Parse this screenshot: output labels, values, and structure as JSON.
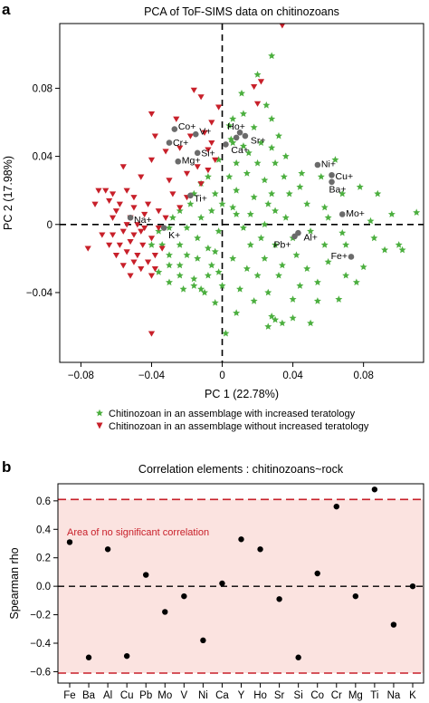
{
  "chart_data": [
    {
      "panel": "a",
      "type": "scatter",
      "title": "PCA of ToF-SIMS data on chitinozoans",
      "xlabel": "PC 1 (22.78%)",
      "ylabel": "PC 2 (17.98%)",
      "xlim": [
        -0.092,
        0.114
      ],
      "ylim": [
        -0.081,
        0.118
      ],
      "xticks": [
        -0.08,
        -0.04,
        0,
        0.04,
        0.08
      ],
      "yticks": [
        -0.04,
        0,
        0.04,
        0.08
      ],
      "xtick_labels": [
        "−0.08",
        "−0.04",
        "0",
        "0.04",
        "0.08"
      ],
      "ytick_labels": [
        "−0.04",
        "0",
        "0.04",
        "0.08"
      ],
      "legend_position": "below",
      "series": [
        {
          "name": "Chitinozoan in an assemblage with increased teratology",
          "marker": "star",
          "color": "#4caf3f",
          "points": [
            [
              0.028,
              0.099
            ],
            [
              0.02,
              0.088
            ],
            [
              0.011,
              0.077
            ],
            [
              0.025,
              0.07
            ],
            [
              0.028,
              0.062
            ],
            [
              0.012,
              0.065
            ],
            [
              0.006,
              0.062
            ],
            [
              0.004,
              0.058
            ],
            [
              0.018,
              0.057
            ],
            [
              0.032,
              0.052
            ],
            [
              0.022,
              0.048
            ],
            [
              0.006,
              0.048
            ],
            [
              0.015,
              0.042
            ],
            [
              0.028,
              0.045
            ],
            [
              0.036,
              0.04
            ],
            [
              0.03,
              0.036
            ],
            [
              0.02,
              0.036
            ],
            [
              0.008,
              0.036
            ],
            [
              -0.002,
              0.038
            ],
            [
              -0.008,
              0.028
            ],
            [
              0.004,
              0.028
            ],
            [
              0.014,
              0.03
            ],
            [
              0.024,
              0.026
            ],
            [
              0.035,
              0.028
            ],
            [
              0.045,
              0.03
            ],
            [
              0.056,
              0.028
            ],
            [
              0.038,
              0.018
            ],
            [
              0.028,
              0.018
            ],
            [
              0.018,
              0.016
            ],
            [
              0.008,
              0.02
            ],
            [
              -0.004,
              0.018
            ],
            [
              -0.012,
              0.024
            ],
            [
              -0.018,
              0.012
            ],
            [
              -0.006,
              0.008
            ],
            [
              0.006,
              0.01
            ],
            [
              0.016,
              0.006
            ],
            [
              0.026,
              0.012
            ],
            [
              0.048,
              0.012
            ],
            [
              0.058,
              0.01
            ],
            [
              0.068,
              0.018
            ],
            [
              0.078,
              0.022
            ],
            [
              0.088,
              0.018
            ],
            [
              0.096,
              0.006
            ],
            [
              0.11,
              0.007
            ],
            [
              0.06,
              0.004
            ],
            [
              0.05,
              -0.004
            ],
            [
              0.068,
              -0.005
            ],
            [
              0.086,
              -0.008
            ],
            [
              0.092,
              -0.015
            ],
            [
              0.1,
              -0.012
            ],
            [
              0.102,
              -0.015
            ],
            [
              0.08,
              -0.025
            ],
            [
              0.07,
              -0.03
            ],
            [
              0.06,
              -0.022
            ],
            [
              0.042,
              -0.018
            ],
            [
              0.03,
              -0.012
            ],
            [
              0.022,
              -0.008
            ],
            [
              0.012,
              -0.002
            ],
            [
              -0.002,
              -0.004
            ],
            [
              -0.014,
              -0.008
            ],
            [
              -0.024,
              -0.012
            ],
            [
              -0.03,
              -0.018
            ],
            [
              -0.024,
              -0.024
            ],
            [
              -0.014,
              -0.02
            ],
            [
              -0.004,
              -0.016
            ],
            [
              0.006,
              -0.02
            ],
            [
              0.014,
              -0.026
            ],
            [
              0.02,
              -0.03
            ],
            [
              0.032,
              -0.03
            ],
            [
              0.044,
              -0.036
            ],
            [
              0.054,
              -0.034
            ],
            [
              0.076,
              -0.034
            ],
            [
              0.066,
              -0.044
            ],
            [
              0.054,
              -0.045
            ],
            [
              0.04,
              -0.044
            ],
            [
              0.026,
              -0.04
            ],
            [
              0.018,
              -0.045
            ],
            [
              0.01,
              -0.038
            ],
            [
              0.0,
              -0.036
            ],
            [
              -0.008,
              -0.03
            ],
            [
              -0.016,
              -0.032
            ],
            [
              -0.024,
              -0.03
            ],
            [
              -0.03,
              -0.034
            ],
            [
              -0.036,
              -0.028
            ],
            [
              -0.022,
              -0.038
            ],
            [
              -0.012,
              -0.038
            ],
            [
              -0.004,
              -0.046
            ],
            [
              0.008,
              -0.052
            ],
            [
              0.028,
              -0.054
            ],
            [
              0.03,
              -0.056
            ],
            [
              0.04,
              -0.055
            ],
            [
              0.034,
              -0.058
            ],
            [
              0.05,
              -0.058
            ],
            [
              0.026,
              -0.06
            ],
            [
              0.002,
              -0.064
            ],
            [
              -0.01,
              -0.04
            ],
            [
              -0.02,
              -0.018
            ],
            [
              -0.008,
              -0.014
            ],
            [
              0.036,
              0.004
            ],
            [
              0.044,
              0.022
            ],
            [
              0.012,
              0.046
            ],
            [
              0.0,
              0.012
            ],
            [
              -0.028,
              0.004
            ],
            [
              -0.03,
              -0.002
            ],
            [
              -0.036,
              -0.004
            ],
            [
              -0.034,
              -0.012
            ],
            [
              -0.02,
              -0.002
            ],
            [
              -0.012,
              0.004
            ],
            [
              -0.006,
              -0.024
            ],
            [
              0.016,
              -0.012
            ],
            [
              0.024,
              -0.02
            ],
            [
              0.04,
              -0.008
            ],
            [
              0.048,
              -0.026
            ],
            [
              0.058,
              -0.012
            ],
            [
              0.07,
              -0.012
            ],
            [
              0.084,
              0.002
            ],
            [
              0.064,
              0.038
            ],
            [
              0.005,
              0.05
            ],
            [
              -0.016,
              0.018
            ],
            [
              -0.024,
              0.008
            ],
            [
              -0.03,
              -0.024
            ],
            [
              -0.016,
              -0.036
            ],
            [
              0.034,
              -0.024
            ],
            [
              0.03,
              0.008
            ],
            [
              0.024,
              0.0
            ],
            [
              0.008,
              0.006
            ],
            [
              -0.002,
              -0.028
            ],
            [
              -0.04,
              -0.012
            ]
          ]
        },
        {
          "name": "Chitinozoan in an assemblage without increased teratology",
          "marker": "triangle-down",
          "color": "#c8202a",
          "points": [
            [
              0.034,
              0.117
            ],
            [
              0.022,
              0.084
            ],
            [
              0.018,
              0.081
            ],
            [
              0.02,
              0.071
            ],
            [
              -0.012,
              0.075
            ],
            [
              -0.016,
              0.079
            ],
            [
              -0.002,
              0.069
            ],
            [
              -0.026,
              0.062
            ],
            [
              -0.04,
              0.065
            ],
            [
              -0.006,
              0.06
            ],
            [
              -0.01,
              0.054
            ],
            [
              -0.038,
              0.052
            ],
            [
              -0.006,
              0.048
            ],
            [
              -0.018,
              0.052
            ],
            [
              -0.008,
              0.044
            ],
            [
              -0.024,
              0.045
            ],
            [
              -0.032,
              0.043
            ],
            [
              -0.04,
              0.038
            ],
            [
              -0.004,
              0.038
            ],
            [
              -0.014,
              0.034
            ],
            [
              -0.008,
              0.032
            ],
            [
              -0.02,
              0.03
            ],
            [
              -0.03,
              0.026
            ],
            [
              -0.012,
              0.024
            ],
            [
              -0.056,
              0.034
            ],
            [
              -0.066,
              0.02
            ],
            [
              -0.07,
              0.02
            ],
            [
              -0.062,
              0.018
            ],
            [
              -0.054,
              0.02
            ],
            [
              -0.05,
              0.016
            ],
            [
              -0.042,
              0.012
            ],
            [
              -0.064,
              0.014
            ],
            [
              -0.072,
              0.012
            ],
            [
              -0.058,
              0.012
            ],
            [
              -0.05,
              0.01
            ],
            [
              -0.06,
              0.008
            ],
            [
              -0.062,
              0.004
            ],
            [
              -0.052,
              0.004
            ],
            [
              -0.048,
              0.0
            ],
            [
              -0.044,
              -0.002
            ],
            [
              -0.036,
              -0.002
            ],
            [
              -0.032,
              0.004
            ],
            [
              -0.056,
              -0.004
            ],
            [
              -0.062,
              -0.006
            ],
            [
              -0.068,
              -0.006
            ],
            [
              -0.05,
              -0.006
            ],
            [
              -0.04,
              -0.008
            ],
            [
              -0.052,
              -0.01
            ],
            [
              -0.064,
              -0.012
            ],
            [
              -0.045,
              -0.012
            ],
            [
              -0.054,
              -0.016
            ],
            [
              -0.06,
              -0.018
            ],
            [
              -0.048,
              -0.018
            ],
            [
              -0.038,
              -0.018
            ],
            [
              -0.042,
              -0.022
            ],
            [
              -0.05,
              -0.022
            ],
            [
              -0.056,
              -0.024
            ],
            [
              -0.046,
              -0.026
            ],
            [
              -0.038,
              -0.026
            ],
            [
              -0.052,
              -0.03
            ],
            [
              -0.04,
              -0.03
            ],
            [
              -0.076,
              -0.014
            ],
            [
              -0.04,
              -0.064
            ],
            [
              -0.036,
              0.008
            ],
            [
              -0.044,
              0.006
            ],
            [
              -0.054,
              0.0
            ],
            [
              -0.058,
              -0.012
            ],
            [
              -0.046,
              -0.004
            ],
            [
              -0.034,
              -0.014
            ],
            [
              -0.024,
              0.01
            ],
            [
              -0.02,
              0.016
            ],
            [
              -0.028,
              0.018
            ],
            [
              -0.046,
              0.028
            ]
          ]
        }
      ],
      "element_points": [
        {
          "label": "Co+",
          "x": -0.027,
          "y": 0.056
        },
        {
          "label": "V+",
          "x": -0.015,
          "y": 0.053
        },
        {
          "label": "Cr+",
          "x": -0.03,
          "y": 0.048
        },
        {
          "label": "Si+",
          "x": -0.014,
          "y": 0.042
        },
        {
          "label": "Mg+",
          "x": -0.025,
          "y": 0.037
        },
        {
          "label": "Ti+",
          "x": -0.018,
          "y": 0.017
        },
        {
          "label": "Na+",
          "x": -0.052,
          "y": 0.004
        },
        {
          "label": "K+",
          "x": -0.033,
          "y": -0.002
        },
        {
          "label": "Ho+",
          "x": 0.01,
          "y": 0.054
        },
        {
          "label": "Sr+",
          "x": 0.013,
          "y": 0.052
        },
        {
          "label": "Ca+",
          "x": 0.008,
          "y": 0.051
        },
        {
          "label": "Ca+",
          "x": 0.002,
          "y": 0.047
        },
        {
          "label": "Ni+",
          "x": 0.054,
          "y": 0.035
        },
        {
          "label": "Cu+",
          "x": 0.062,
          "y": 0.029
        },
        {
          "label": "Ba+",
          "x": 0.062,
          "y": 0.025
        },
        {
          "label": "Mo+",
          "x": 0.068,
          "y": 0.006
        },
        {
          "label": "Al+",
          "x": 0.043,
          "y": -0.005
        },
        {
          "label": "Pb+",
          "x": 0.041,
          "y": -0.007
        },
        {
          "label": "Fe+",
          "x": 0.073,
          "y": -0.019
        }
      ]
    },
    {
      "panel": "b",
      "type": "scatter",
      "title": "Correlation elements : chitinozoans~rock",
      "xlabel": "",
      "ylabel": "Spearman rho",
      "ylim": [
        -0.68,
        0.72
      ],
      "yticks": [
        -0.6,
        -0.4,
        -0.2,
        0.0,
        0.2,
        0.4,
        0.6
      ],
      "ytick_labels": [
        "−0.6",
        "−0.4",
        "−0.2",
        "0.0",
        "0.2",
        "0.4",
        "0.6"
      ],
      "categories": [
        "Fe",
        "Ba",
        "Al",
        "Cu",
        "Pb",
        "Mo",
        "V",
        "Ni",
        "Ca",
        "Y",
        "Ho",
        "Sr",
        "Si",
        "Co",
        "Cr",
        "Mg",
        "Ti",
        "Na",
        "K"
      ],
      "values": [
        0.31,
        -0.5,
        0.26,
        -0.49,
        0.08,
        -0.18,
        -0.07,
        -0.38,
        0.02,
        0.33,
        0.26,
        -0.09,
        -0.5,
        0.09,
        0.56,
        -0.07,
        0.68,
        -0.27,
        0.0
      ],
      "threshold_lines": [
        0.61,
        -0.61
      ],
      "zero_line": 0,
      "region_label": "Area of no significant correlation"
    }
  ]
}
